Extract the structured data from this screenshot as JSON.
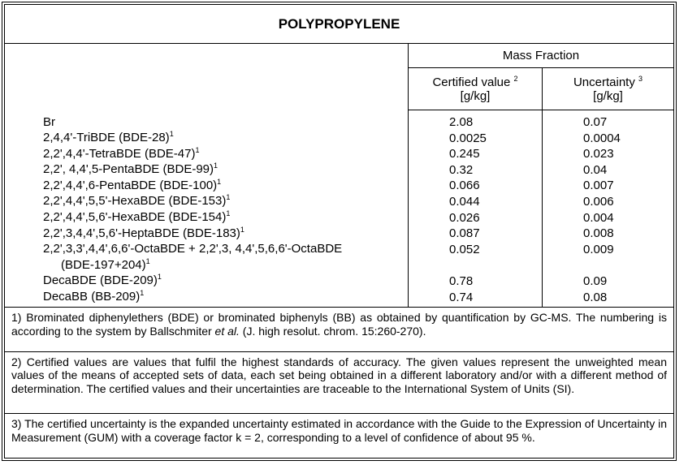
{
  "title": "POLYPROPYLENE",
  "header": {
    "group": "Mass Fraction",
    "columns": [
      {
        "label": "Certified value",
        "note": "2",
        "unit": "[g/kg]"
      },
      {
        "label": "Uncertainty",
        "note": "3",
        "unit": "[g/kg]"
      }
    ]
  },
  "rows": [
    {
      "name": "Br",
      "certified": "2.08",
      "uncertainty": "0.07"
    },
    {
      "name": "2,4,4'-TriBDE (BDE-28)",
      "note": "1",
      "certified": "0.0025",
      "uncertainty": "0.0004"
    },
    {
      "name": "2,2',4,4'-TetraBDE (BDE-47)",
      "note": "1",
      "certified": "0.245",
      "uncertainty": "0.023"
    },
    {
      "name": "2,2', 4,4',5-PentaBDE (BDE-99)",
      "note": "1",
      "certified": "0.32",
      "uncertainty": "0.04"
    },
    {
      "name": "2,2',4,4',6-PentaBDE (BDE-100)",
      "note": "1",
      "certified": "0.066",
      "uncertainty": "0.007"
    },
    {
      "name": "2,2',4,4',5,5'-HexaBDE (BDE-153)",
      "note": "1",
      "certified": "0.044",
      "uncertainty": "0.006"
    },
    {
      "name": "2,2',4,4',5,6'-HexaBDE (BDE-154)",
      "note": "1",
      "certified": "0.026",
      "uncertainty": "0.004"
    },
    {
      "name": "2,2',3,4,4',5,6'-HeptaBDE (BDE-183)",
      "note": "1",
      "certified": "0.087",
      "uncertainty": "0.008"
    },
    {
      "name": "2,2',3,3',4,4',6,6'-OctaBDE + 2,2',3, 4,4',5,6,6'-OctaBDE",
      "name2": "(BDE-197+204)",
      "note": "1",
      "certified": "0.052",
      "uncertainty": "0.009"
    },
    {
      "name": "DecaBDE (BDE-209)",
      "note": "1",
      "certified": "0.78",
      "uncertainty": "0.09"
    },
    {
      "name": "DecaBB (BB-209)",
      "note": "1",
      "certified": "0.74",
      "uncertainty": "0.08"
    }
  ],
  "notes": [
    {
      "text": "1) Brominated diphenylethers (BDE) or brominated biphenyls (BB) as obtained by quantification by GC-MS. The numbering is according to the system by Ballschmiter ",
      "italic": "et al.",
      "rest": " (J. high resolut. chrom. 15:260-270)."
    },
    {
      "text": "2) Certified values are values that fulfil the highest standards of accuracy. The given values represent the unweighted mean values of the means of accepted sets of data, each set being obtained in a different laboratory and/or with a different method of determination. The certified values and their uncertainties are traceable to the International System of Units (SI)."
    },
    {
      "text": "3) The certified uncertainty is the expanded uncertainty estimated in accordance with the Guide to the Expression of Uncertainty in Measurement (GUM) with a coverage factor k = 2, corresponding to a level of confidence of about 95 %."
    }
  ]
}
